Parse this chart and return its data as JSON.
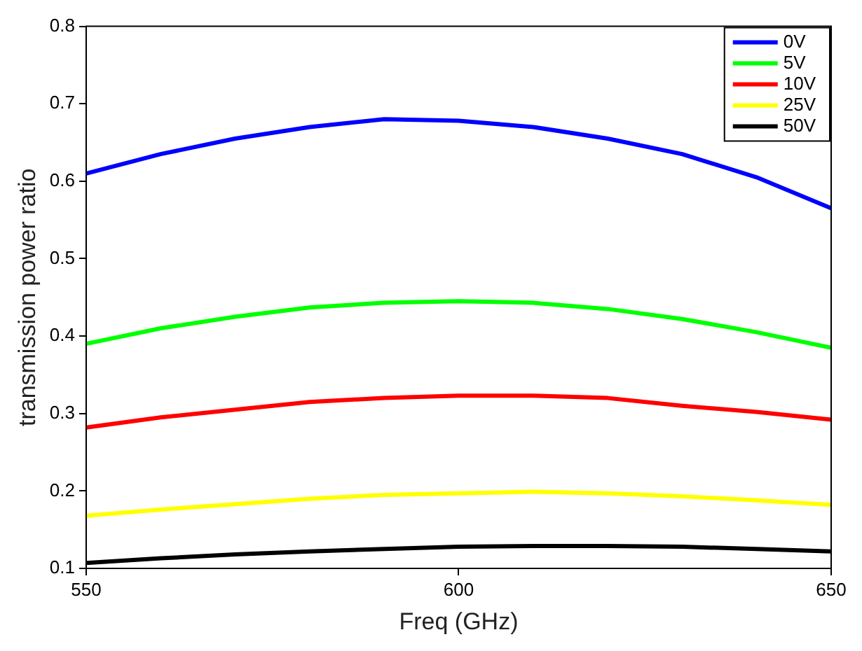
{
  "chart_data": {
    "type": "line",
    "xlabel": "Freq (GHz)",
    "ylabel": "transmission power ratio",
    "x": [
      550,
      560,
      570,
      580,
      590,
      600,
      610,
      620,
      630,
      640,
      650
    ],
    "xlim": [
      550,
      650
    ],
    "xticks": [
      550,
      600,
      650
    ],
    "ylim": [
      0.1,
      0.8
    ],
    "yticks": [
      0.1,
      0.2,
      0.3,
      0.4,
      0.5,
      0.6,
      0.7,
      0.8
    ],
    "legend": "top right",
    "marker": "none",
    "line_style": "solid",
    "series": [
      {
        "name": "0V",
        "color": "#0000ff",
        "values": [
          0.61,
          0.635,
          0.655,
          0.67,
          0.68,
          0.678,
          0.67,
          0.655,
          0.635,
          0.605,
          0.565
        ]
      },
      {
        "name": "5V",
        "color": "#00ff00",
        "values": [
          0.39,
          0.41,
          0.425,
          0.437,
          0.443,
          0.445,
          0.443,
          0.435,
          0.422,
          0.405,
          0.385
        ]
      },
      {
        "name": "10V",
        "color": "#ff0000",
        "values": [
          0.282,
          0.295,
          0.305,
          0.315,
          0.32,
          0.323,
          0.323,
          0.32,
          0.31,
          0.302,
          0.292
        ]
      },
      {
        "name": "25V",
        "color": "#ffff00",
        "values": [
          0.168,
          0.176,
          0.183,
          0.19,
          0.195,
          0.197,
          0.199,
          0.197,
          0.193,
          0.188,
          0.182
        ]
      },
      {
        "name": "50V",
        "color": "#000000",
        "values": [
          0.107,
          0.113,
          0.118,
          0.122,
          0.125,
          0.128,
          0.129,
          0.129,
          0.128,
          0.125,
          0.122
        ]
      }
    ]
  }
}
